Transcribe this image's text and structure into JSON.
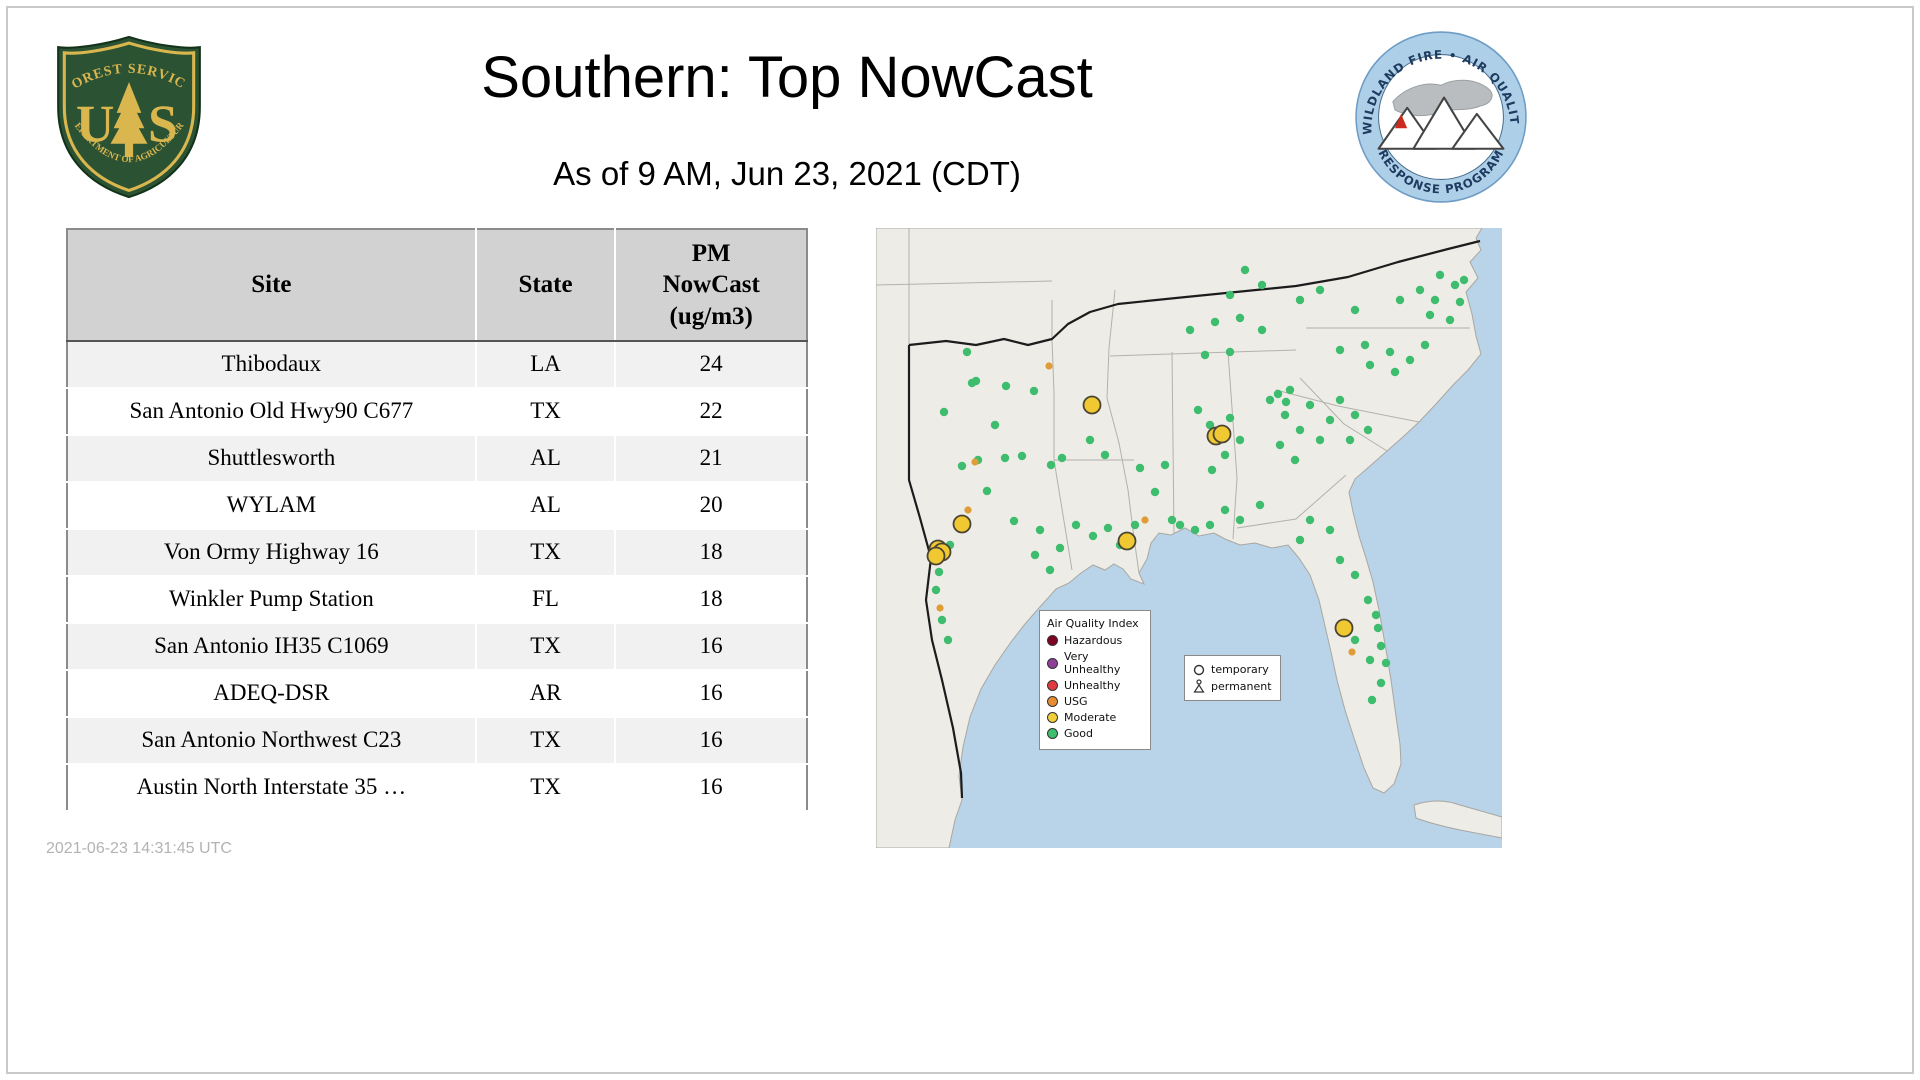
{
  "header": {
    "title": "Southern: Top NowCast",
    "subtitle": "As of  9 AM, Jun 23, 2021 (CDT)"
  },
  "logos": {
    "forest_service": {
      "arc_top": "FOREST SERVICE",
      "letter_left": "U",
      "letter_right": "S",
      "arc_bottom": "DEPARTMENT OF AGRICULTURE"
    },
    "air_quality_program": {
      "arc_top": "WILDLAND FIRE • AIR QUALITY",
      "arc_bottom": "RESPONSE PROGRAM"
    }
  },
  "table": {
    "col_site": "Site",
    "col_state": "State",
    "col_value": "PM\nNowCast\n(ug/m3)"
  },
  "chart_data": {
    "type": "table",
    "title": "Southern: Top NowCast",
    "as_of": "As of 9 AM, Jun 23, 2021 (CDT)",
    "columns": [
      "Site",
      "State",
      "PM NowCast (ug/m3)"
    ],
    "rows": [
      [
        "Thibodaux",
        "LA",
        "24"
      ],
      [
        "San Antonio Old Hwy90 C677",
        "TX",
        "22"
      ],
      [
        "Shuttlesworth",
        "AL",
        "21"
      ],
      [
        "WYLAM",
        "AL",
        "20"
      ],
      [
        "Von Ormy Highway 16",
        "TX",
        "18"
      ],
      [
        "Winkler Pump Station",
        "FL",
        "18"
      ],
      [
        "San Antonio IH35 C1069",
        "TX",
        "16"
      ],
      [
        "ADEQ-DSR",
        "AR",
        "16"
      ],
      [
        "San Antonio Northwest C23",
        "TX",
        "16"
      ],
      [
        "Austin North Interstate 35 …",
        "TX",
        "16"
      ]
    ]
  },
  "map": {
    "legend": {
      "title": "Air Quality Index",
      "items": [
        {
          "label": "Hazardous",
          "color": "#7e0023"
        },
        {
          "label": "Very Unhealthy",
          "color": "#8f3f97"
        },
        {
          "label": "Unhealthy",
          "color": "#e03a3f"
        },
        {
          "label": "USG",
          "color": "#e88b32"
        },
        {
          "label": "Moderate",
          "color": "#f2cf3a"
        },
        {
          "label": "Good",
          "color": "#3dbd6d"
        }
      ]
    },
    "marker_types": [
      {
        "label": "temporary"
      },
      {
        "label": "permanent"
      }
    ],
    "markers": [
      {
        "name": "good",
        "r": 4.2,
        "fill": "#3dbd6d",
        "points": [
          [
            68,
            184
          ],
          [
            91,
            124
          ],
          [
            100,
            153
          ],
          [
            130,
            158
          ],
          [
            158,
            163
          ],
          [
            96,
            155
          ],
          [
            119,
            197
          ],
          [
            146,
            228
          ],
          [
            86,
            238
          ],
          [
            102,
            232
          ],
          [
            129,
            230
          ],
          [
            111,
            263
          ],
          [
            138,
            293
          ],
          [
            164,
            302
          ],
          [
            175,
            237
          ],
          [
            60,
            362
          ],
          [
            66,
            392
          ],
          [
            72,
            412
          ],
          [
            62,
            329
          ],
          [
            74,
            317
          ],
          [
            63,
            344
          ],
          [
            200,
            297
          ],
          [
            217,
            308
          ],
          [
            232,
            300
          ],
          [
            244,
            317
          ],
          [
            259,
            297
          ],
          [
            214,
            212
          ],
          [
            229,
            227
          ],
          [
            186,
            230
          ],
          [
            264,
            240
          ],
          [
            279,
            264
          ],
          [
            289,
            237
          ],
          [
            296,
            292
          ],
          [
            314,
            102
          ],
          [
            339,
            94
          ],
          [
            364,
            90
          ],
          [
            386,
            102
          ],
          [
            329,
            127
          ],
          [
            354,
            124
          ],
          [
            322,
            182
          ],
          [
            334,
            197
          ],
          [
            349,
            227
          ],
          [
            336,
            242
          ],
          [
            354,
            190
          ],
          [
            364,
            212
          ],
          [
            394,
            172
          ],
          [
            409,
            187
          ],
          [
            424,
            202
          ],
          [
            414,
            162
          ],
          [
            434,
            177
          ],
          [
            444,
            212
          ],
          [
            404,
            217
          ],
          [
            419,
            232
          ],
          [
            454,
            192
          ],
          [
            402,
            166
          ],
          [
            410,
            174
          ],
          [
            464,
            172
          ],
          [
            479,
            187
          ],
          [
            492,
            202
          ],
          [
            474,
            212
          ],
          [
            464,
            122
          ],
          [
            489,
            117
          ],
          [
            514,
            124
          ],
          [
            534,
            132
          ],
          [
            549,
            117
          ],
          [
            494,
            137
          ],
          [
            519,
            144
          ],
          [
            524,
            72
          ],
          [
            544,
            62
          ],
          [
            559,
            72
          ],
          [
            564,
            47
          ],
          [
            579,
            57
          ],
          [
            554,
            87
          ],
          [
            574,
            92
          ],
          [
            584,
            74
          ],
          [
            588,
            52
          ],
          [
            369,
            42
          ],
          [
            386,
            57
          ],
          [
            424,
            72
          ],
          [
            444,
            62
          ],
          [
            479,
            82
          ],
          [
            354,
            67
          ],
          [
            434,
            292
          ],
          [
            454,
            302
          ],
          [
            424,
            312
          ],
          [
            464,
            332
          ],
          [
            479,
            347
          ],
          [
            492,
            372
          ],
          [
            500,
            387
          ],
          [
            479,
            412
          ],
          [
            494,
            432
          ],
          [
            505,
            455
          ],
          [
            496,
            472
          ],
          [
            505,
            418
          ],
          [
            510,
            435
          ],
          [
            502,
            400
          ],
          [
            384,
            277
          ],
          [
            364,
            292
          ],
          [
            349,
            282
          ],
          [
            304,
            297
          ],
          [
            319,
            302
          ],
          [
            334,
            297
          ],
          [
            159,
            327
          ],
          [
            174,
            342
          ],
          [
            184,
            320
          ]
        ]
      },
      {
        "name": "usg",
        "r": 3.6,
        "fill": "#e09c36",
        "points": [
          [
            99,
            234
          ],
          [
            173,
            138
          ],
          [
            92,
            282
          ],
          [
            64,
            380
          ],
          [
            476,
            424
          ],
          [
            269,
            292
          ]
        ]
      },
      {
        "name": "moderate",
        "r": 8.5,
        "fill": "#f0c832",
        "stroke": "#4a4432",
        "stroke_width": 1.8,
        "points": [
          [
            216,
            177
          ],
          [
            340,
            208
          ],
          [
            346,
            206
          ],
          [
            86,
            296
          ],
          [
            62,
            321
          ],
          [
            66,
            324
          ],
          [
            60,
            328
          ],
          [
            251,
            313
          ],
          [
            468,
            400
          ]
        ]
      }
    ]
  },
  "footer": {
    "generated": "2021-06-23 14:31:45 UTC"
  }
}
